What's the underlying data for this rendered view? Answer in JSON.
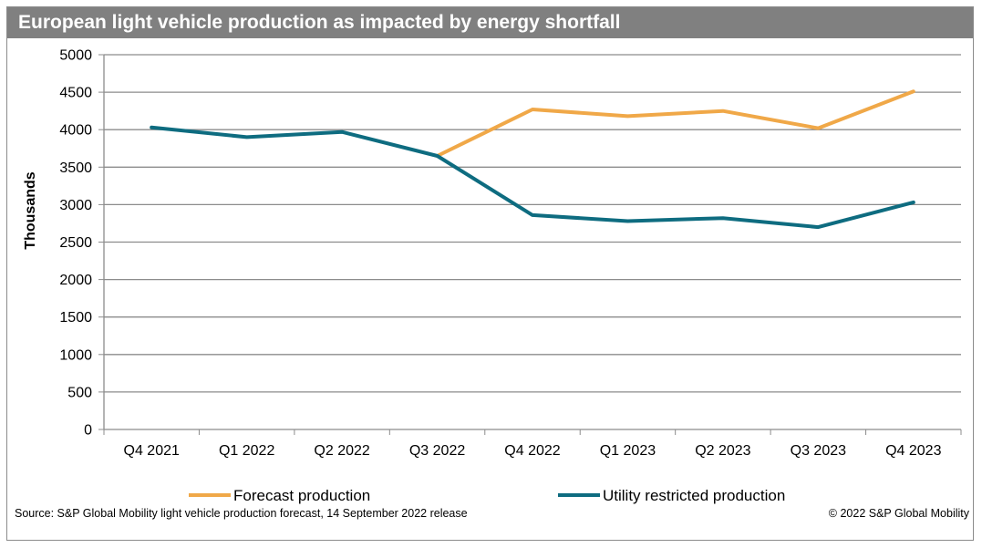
{
  "colors": {
    "forecast": "#f0a848",
    "restricted": "#0e6c80",
    "grid": "#8c8c8c",
    "title_bg": "#808080"
  },
  "footer": {
    "source": "Source: S&P Global Mobility light vehicle production forecast, 14 September 2022 release",
    "copyright": "© 2022 S&P Global Mobility"
  },
  "chart_data": {
    "type": "line",
    "title": "European light vehicle production as impacted by energy shortfall",
    "xlabel": "",
    "ylabel": "Thousands",
    "ylim": [
      0,
      5000
    ],
    "yticks": [
      0,
      500,
      1000,
      1500,
      2000,
      2500,
      3000,
      3500,
      4000,
      4500,
      5000
    ],
    "grid": true,
    "legend": "bottom",
    "categories": [
      "Q4 2021",
      "Q1 2022",
      "Q2 2022",
      "Q3 2022",
      "Q4 2022",
      "Q1 2023",
      "Q2 2023",
      "Q3 2023",
      "Q4 2023"
    ],
    "series": [
      {
        "name": "Forecast production",
        "values": [
          null,
          null,
          null,
          3650,
          4270,
          4180,
          4250,
          4020,
          4510
        ]
      },
      {
        "name": "Utility restricted production",
        "values": [
          4030,
          3900,
          3970,
          3650,
          2860,
          2780,
          2820,
          2700,
          3030
        ]
      }
    ]
  }
}
